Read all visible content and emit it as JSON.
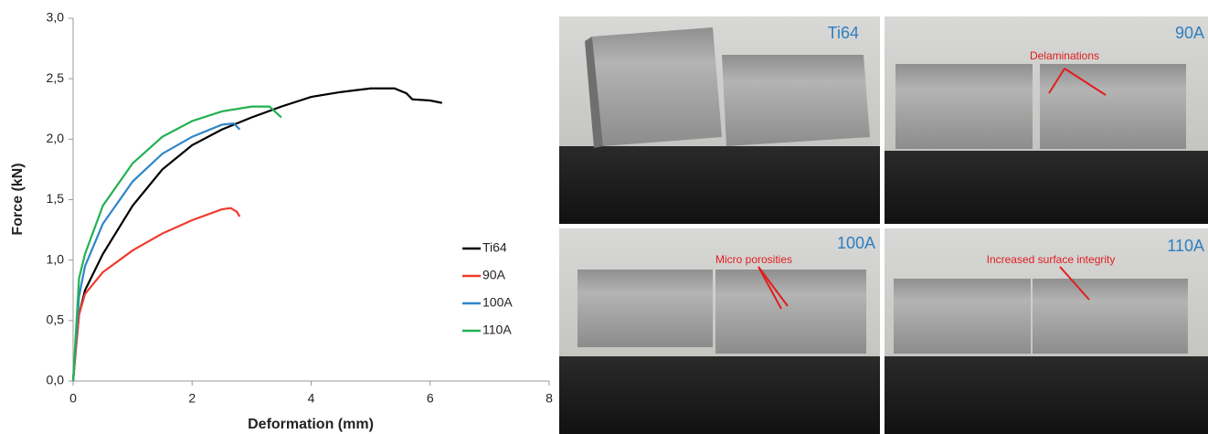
{
  "chart_data": {
    "type": "line",
    "xlabel": "Deformation (mm)",
    "ylabel": "Force (kN)",
    "xlim": [
      0,
      8
    ],
    "xticks": [
      0,
      2,
      4,
      6,
      8
    ],
    "ylim": [
      0,
      3
    ],
    "yticks": [
      {
        "value": 0,
        "label": "0,0"
      },
      {
        "value": 0.5,
        "label": "0,5"
      },
      {
        "value": 1,
        "label": "1,0"
      },
      {
        "value": 1.5,
        "label": "1,5"
      },
      {
        "value": 2,
        "label": "2,0"
      },
      {
        "value": 2.5,
        "label": "2,5"
      },
      {
        "value": 3,
        "label": "3,0"
      }
    ],
    "legend": "lower right",
    "series": [
      {
        "name": "Ti64",
        "color": "#000000",
        "x": [
          0,
          0.05,
          0.1,
          0.2,
          0.5,
          1,
          1.5,
          2,
          2.5,
          3,
          3.5,
          4,
          4.5,
          5,
          5.4,
          5.6,
          5.7,
          6,
          6.2
        ],
        "values": [
          0,
          0.3,
          0.55,
          0.75,
          1.05,
          1.45,
          1.75,
          1.95,
          2.08,
          2.18,
          2.27,
          2.35,
          2.39,
          2.42,
          2.42,
          2.38,
          2.33,
          2.32,
          2.3
        ]
      },
      {
        "name": "90A",
        "color": "#f03a2e",
        "x": [
          0,
          0.1,
          0.2,
          0.5,
          1,
          1.5,
          2,
          2.5,
          2.65,
          2.75,
          2.8
        ],
        "values": [
          0,
          0.55,
          0.72,
          0.9,
          1.08,
          1.22,
          1.33,
          1.42,
          1.43,
          1.4,
          1.36
        ]
      },
      {
        "name": "100A",
        "color": "#2e86c9",
        "x": [
          0,
          0.1,
          0.2,
          0.5,
          1,
          1.5,
          2,
          2.5,
          2.7,
          2.8
        ],
        "values": [
          0,
          0.7,
          0.95,
          1.3,
          1.65,
          1.88,
          2.02,
          2.12,
          2.13,
          2.08
        ]
      },
      {
        "name": "110A",
        "color": "#22b150",
        "x": [
          0,
          0.1,
          0.2,
          0.5,
          1,
          1.5,
          2,
          2.5,
          3,
          3.3,
          3.5
        ],
        "values": [
          0,
          0.85,
          1.05,
          1.45,
          1.8,
          2.02,
          2.15,
          2.23,
          2.27,
          2.27,
          2.18
        ]
      }
    ]
  },
  "panels": [
    {
      "label": "Ti64"
    },
    {
      "label": "90A",
      "annotation": "Delaminations"
    },
    {
      "label": "100A",
      "annotation": "Micro porosities"
    },
    {
      "label": "110A",
      "annotation": "Increased surface integrity"
    }
  ]
}
